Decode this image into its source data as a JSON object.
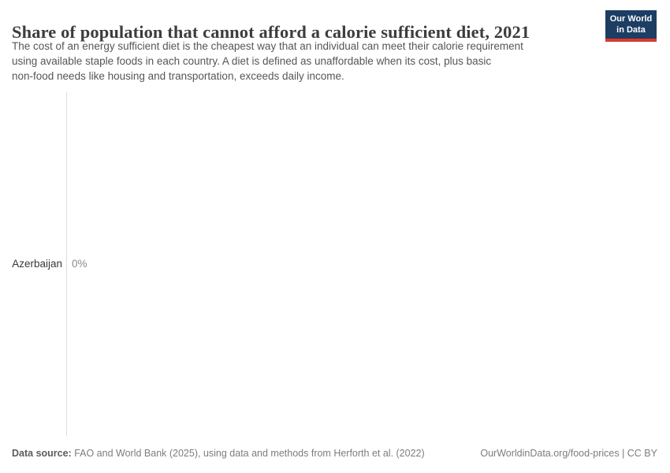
{
  "header": {
    "title": "Share of population that cannot afford a calorie sufficient diet, 2021",
    "subtitle_lines": [
      "The cost of an energy sufficient diet is the cheapest way that an individual can meet their calorie requirement",
      "using available staple foods in each country. A diet is defined as unaffordable when its cost, plus basic",
      "non-food needs like housing and transportation, exceeds daily income."
    ]
  },
  "logo": {
    "line1": "Our World",
    "line2": "in Data"
  },
  "chart_data": {
    "type": "bar",
    "orientation": "horizontal",
    "title": "Share of population that cannot afford a calorie sufficient diet, 2021",
    "year": "2021",
    "categories": [
      "Azerbaijan"
    ],
    "values": [
      0
    ],
    "value_labels": [
      "0%"
    ],
    "unit": "%",
    "xlim": [
      0,
      100
    ],
    "grid": false,
    "legend": false
  },
  "footer": {
    "datasource_label": "Data source:",
    "datasource_text": " FAO and World Bank (2025), using data and methods from Herforth et al. (2022)",
    "link_text": "OurWorldinData.org/food-prices | CC BY"
  },
  "colors": {
    "logo_background": "#1d3d63",
    "logo_accent": "#d93a2d",
    "title_text": "#3d3d3d",
    "subtitle_text": "#565656",
    "entity_label_text": "#383838",
    "value_label_text": "#8a8a8a",
    "axis_line": "#dedede",
    "footer_text": "#7d7d7d"
  }
}
